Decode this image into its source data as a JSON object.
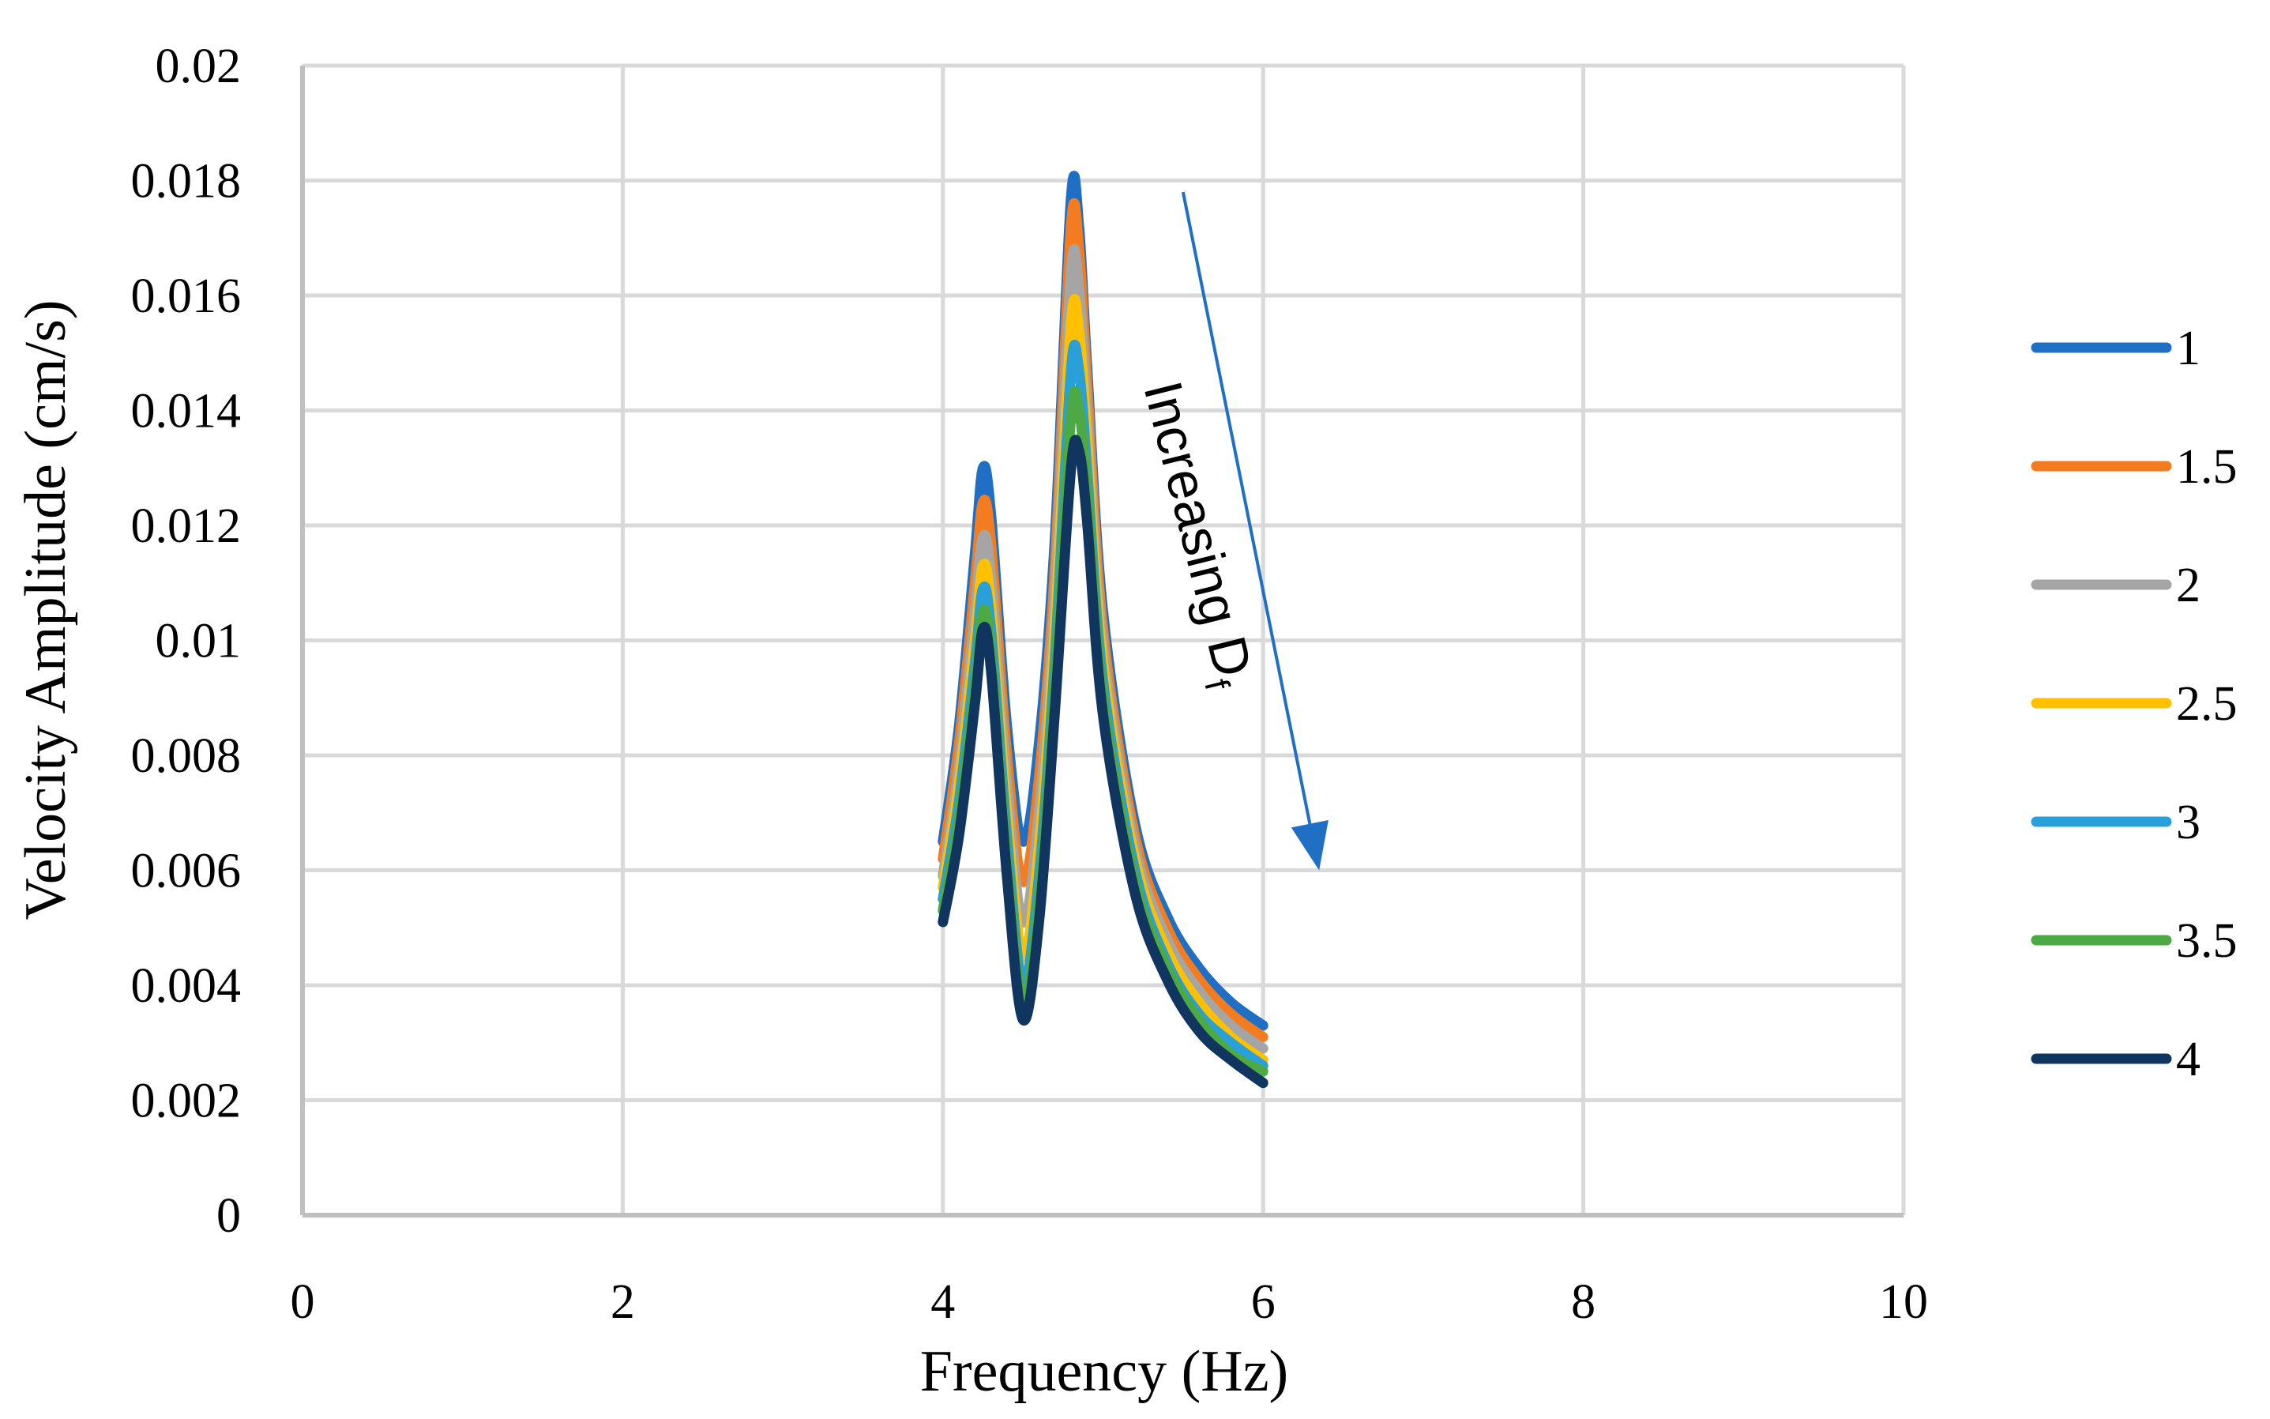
{
  "chart_data": {
    "type": "line",
    "title": "",
    "xlabel": "Frequency (Hz)",
    "ylabel": "Velocity Amplitude (cm/s)",
    "xlim": [
      0,
      10
    ],
    "ylim": [
      0,
      0.02
    ],
    "xticks": [
      "0",
      "2",
      "4",
      "6",
      "8",
      "10"
    ],
    "yticks": [
      "0",
      "0.002",
      "0.004",
      "0.006",
      "0.008",
      "0.01",
      "0.012",
      "0.014",
      "0.016",
      "0.018",
      "0.02"
    ],
    "grid": true,
    "legend_position": "right",
    "annotation": {
      "text": "Increasing D",
      "subscript": "f",
      "arrow_from": [
        5.5,
        0.0178
      ],
      "arrow_to": [
        6.35,
        0.006
      ]
    },
    "series": [
      {
        "name": "1",
        "color": "#1f6fc5",
        "x": [
          4.0,
          4.1,
          4.2,
          4.25,
          4.3,
          4.4,
          4.5,
          4.6,
          4.7,
          4.8,
          4.85,
          4.9,
          5.0,
          5.2,
          5.4,
          5.6,
          5.8,
          6.0
        ],
        "y": [
          0.0065,
          0.0085,
          0.0115,
          0.013,
          0.0122,
          0.0085,
          0.0065,
          0.0082,
          0.0118,
          0.0177,
          0.0172,
          0.0148,
          0.0105,
          0.0068,
          0.0052,
          0.0043,
          0.0037,
          0.0033
        ]
      },
      {
        "name": "1.5",
        "color": "#f47c20",
        "x": [
          4.0,
          4.1,
          4.2,
          4.25,
          4.3,
          4.4,
          4.5,
          4.6,
          4.7,
          4.8,
          4.85,
          4.9,
          5.0,
          5.2,
          5.4,
          5.6,
          5.8,
          6.0
        ],
        "y": [
          0.0062,
          0.0082,
          0.011,
          0.0124,
          0.0117,
          0.008,
          0.0058,
          0.0076,
          0.0113,
          0.0172,
          0.0168,
          0.0145,
          0.0102,
          0.0066,
          0.005,
          0.0041,
          0.0035,
          0.0031
        ]
      },
      {
        "name": "2",
        "color": "#a5a5a5",
        "x": [
          4.0,
          4.1,
          4.2,
          4.25,
          4.3,
          4.4,
          4.5,
          4.6,
          4.7,
          4.8,
          4.85,
          4.9,
          5.0,
          5.2,
          5.4,
          5.6,
          5.8,
          6.0
        ],
        "y": [
          0.0059,
          0.0078,
          0.0105,
          0.0118,
          0.0111,
          0.0075,
          0.0051,
          0.007,
          0.0108,
          0.0164,
          0.0161,
          0.014,
          0.0099,
          0.0064,
          0.0048,
          0.0039,
          0.0033,
          0.0029
        ]
      },
      {
        "name": "2.5",
        "color": "#ffc000",
        "x": [
          4.0,
          4.1,
          4.2,
          4.25,
          4.3,
          4.4,
          4.5,
          4.6,
          4.7,
          4.8,
          4.85,
          4.9,
          5.0,
          5.2,
          5.4,
          5.6,
          5.8,
          6.0
        ],
        "y": [
          0.0057,
          0.0075,
          0.01,
          0.0113,
          0.0106,
          0.007,
          0.0045,
          0.0064,
          0.0102,
          0.0155,
          0.0154,
          0.0135,
          0.0096,
          0.0062,
          0.0046,
          0.0037,
          0.0031,
          0.0027
        ]
      },
      {
        "name": "3",
        "color": "#2aa0d8",
        "x": [
          4.0,
          4.1,
          4.2,
          4.25,
          4.3,
          4.4,
          4.5,
          4.6,
          4.7,
          4.8,
          4.85,
          4.9,
          5.0,
          5.2,
          5.4,
          5.6,
          5.8,
          6.0
        ],
        "y": [
          0.0055,
          0.0072,
          0.0096,
          0.0109,
          0.0102,
          0.0066,
          0.004,
          0.0059,
          0.0097,
          0.0147,
          0.0147,
          0.013,
          0.0093,
          0.006,
          0.0044,
          0.0035,
          0.003,
          0.0026
        ]
      },
      {
        "name": "3.5",
        "color": "#4ca944",
        "x": [
          4.0,
          4.1,
          4.2,
          4.25,
          4.3,
          4.4,
          4.5,
          4.6,
          4.7,
          4.8,
          4.85,
          4.9,
          5.0,
          5.2,
          5.4,
          5.6,
          5.8,
          6.0
        ],
        "y": [
          0.0053,
          0.0069,
          0.0092,
          0.0105,
          0.0098,
          0.0062,
          0.0037,
          0.0055,
          0.0093,
          0.0139,
          0.014,
          0.0126,
          0.009,
          0.0058,
          0.0043,
          0.0034,
          0.0028,
          0.0025
        ]
      },
      {
        "name": "4",
        "color": "#10355f",
        "x": [
          4.0,
          4.1,
          4.2,
          4.25,
          4.3,
          4.4,
          4.5,
          4.6,
          4.7,
          4.8,
          4.85,
          4.9,
          5.0,
          5.2,
          5.4,
          5.6,
          5.8,
          6.0
        ],
        "y": [
          0.0051,
          0.0066,
          0.0089,
          0.0102,
          0.0095,
          0.0059,
          0.0034,
          0.0051,
          0.0088,
          0.013,
          0.0133,
          0.0121,
          0.0087,
          0.0056,
          0.0041,
          0.0032,
          0.0027,
          0.0023
        ]
      }
    ]
  }
}
